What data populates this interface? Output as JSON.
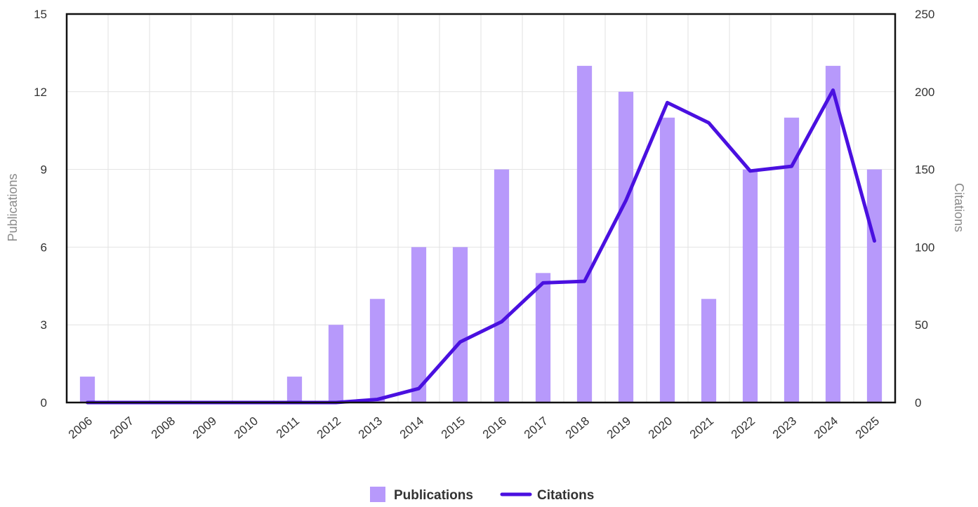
{
  "chart_data": {
    "type": "bar",
    "categories": [
      "2006",
      "2007",
      "2008",
      "2009",
      "2010",
      "2011",
      "2012",
      "2013",
      "2014",
      "2015",
      "2016",
      "2017",
      "2018",
      "2019",
      "2020",
      "2021",
      "2022",
      "2023",
      "2024",
      "2025"
    ],
    "series": [
      {
        "name": "Publications",
        "kind": "bar",
        "axis": "left",
        "color": "#b799fb",
        "values": [
          1,
          0,
          0,
          0,
          0,
          1,
          3,
          4,
          6,
          6,
          9,
          5,
          13,
          12,
          11,
          4,
          9,
          11,
          13,
          9
        ]
      },
      {
        "name": "Citations",
        "kind": "line",
        "axis": "right",
        "color": "#4a10e0",
        "values": [
          0,
          0,
          0,
          0,
          0,
          0,
          0,
          2,
          9,
          39,
          52,
          77,
          78,
          130,
          193,
          180,
          149,
          152,
          201,
          104
        ]
      }
    ],
    "ylabel": "Publications",
    "y2label": "Citations",
    "ylim": [
      0,
      15
    ],
    "y2lim": [
      0,
      250
    ],
    "yticks": [
      "0",
      "3",
      "6",
      "9",
      "12",
      "15"
    ],
    "y2ticks": [
      "0",
      "50",
      "100",
      "150",
      "200",
      "250"
    ],
    "grid": true,
    "legend_position": "bottom-center"
  }
}
